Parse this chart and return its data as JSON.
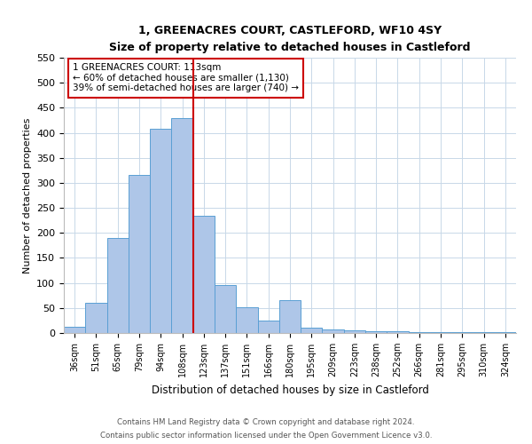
{
  "title": "1, GREENACRES COURT, CASTLEFORD, WF10 4SY",
  "subtitle": "Size of property relative to detached houses in Castleford",
  "xlabel": "Distribution of detached houses by size in Castleford",
  "ylabel": "Number of detached properties",
  "bin_labels": [
    "36sqm",
    "51sqm",
    "65sqm",
    "79sqm",
    "94sqm",
    "108sqm",
    "123sqm",
    "137sqm",
    "151sqm",
    "166sqm",
    "180sqm",
    "195sqm",
    "209sqm",
    "223sqm",
    "238sqm",
    "252sqm",
    "266sqm",
    "281sqm",
    "295sqm",
    "310sqm",
    "324sqm"
  ],
  "bar_heights": [
    13,
    60,
    190,
    315,
    408,
    430,
    235,
    95,
    52,
    25,
    65,
    10,
    7,
    5,
    3,
    3,
    2,
    2,
    1,
    1,
    2
  ],
  "bar_color": "#aec6e8",
  "bar_edge_color": "#5a9fd4",
  "ylim": [
    0,
    550
  ],
  "yticks": [
    0,
    50,
    100,
    150,
    200,
    250,
    300,
    350,
    400,
    450,
    500,
    550
  ],
  "property_line_color": "#cc0000",
  "annotation_title": "1 GREENACRES COURT: 113sqm",
  "annotation_line1": "← 60% of detached houses are smaller (1,130)",
  "annotation_line2": "39% of semi-detached houses are larger (740) →",
  "annotation_box_color": "#cc0000",
  "footnote1": "Contains HM Land Registry data © Crown copyright and database right 2024.",
  "footnote2": "Contains public sector information licensed under the Open Government Licence v3.0.",
  "background_color": "#ffffff",
  "grid_color": "#c8d8e8"
}
